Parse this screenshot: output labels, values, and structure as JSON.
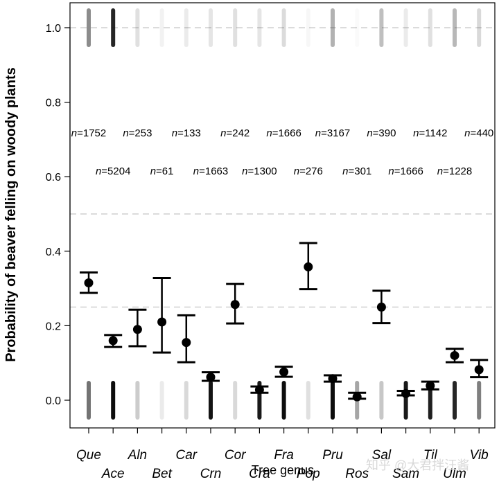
{
  "chart_data": {
    "type": "scatter",
    "xlabel": "Tree genus",
    "ylabel": "Probability of beaver felling on woody plants",
    "ylim": [
      -0.05,
      1.05
    ],
    "yticks": [
      0.0,
      0.2,
      0.4,
      0.6,
      0.8,
      1.0
    ],
    "ytick_labels": [
      "0.0",
      "0.2",
      "0.4",
      "0.6",
      "0.8",
      "1.0"
    ],
    "reference_lines": [
      0.25,
      0.5,
      1.0
    ],
    "grid": false,
    "categories": [
      {
        "label": "Que",
        "n": "1752",
        "mean": 0.315,
        "lo": 0.288,
        "hi": 0.343,
        "jitter0": 0.55,
        "jitter1": 0.45
      },
      {
        "label": "Ace",
        "n": "5204",
        "mean": 0.16,
        "lo": 0.143,
        "hi": 0.175,
        "jitter0": 0.95,
        "jitter1": 0.85
      },
      {
        "label": "Aln",
        "n": "253",
        "mean": 0.19,
        "lo": 0.145,
        "hi": 0.243,
        "jitter0": 0.2,
        "jitter1": 0.12
      },
      {
        "label": "Bet",
        "n": "61",
        "mean": 0.21,
        "lo": 0.128,
        "hi": 0.328,
        "jitter0": 0.08,
        "jitter1": 0.05
      },
      {
        "label": "Car",
        "n": "133",
        "mean": 0.155,
        "lo": 0.102,
        "hi": 0.228,
        "jitter0": 0.15,
        "jitter1": 0.08
      },
      {
        "label": "Crn",
        "n": "1663",
        "mean": 0.062,
        "lo": 0.052,
        "hi": 0.075,
        "jitter0": 0.92,
        "jitter1": 0.1
      },
      {
        "label": "Cor",
        "n": "242",
        "mean": 0.257,
        "lo": 0.206,
        "hi": 0.312,
        "jitter0": 0.15,
        "jitter1": 0.12
      },
      {
        "label": "Cra",
        "n": "1300",
        "mean": 0.028,
        "lo": 0.02,
        "hi": 0.037,
        "jitter0": 0.9,
        "jitter1": 0.1
      },
      {
        "label": "Fra",
        "n": "1666",
        "mean": 0.076,
        "lo": 0.063,
        "hi": 0.09,
        "jitter0": 0.95,
        "jitter1": 0.14
      },
      {
        "label": "Pop",
        "n": "276",
        "mean": 0.358,
        "lo": 0.298,
        "hi": 0.422,
        "jitter0": 0.12,
        "jitter1": 0.03
      },
      {
        "label": "Pru",
        "n": "3167",
        "mean": 0.058,
        "lo": 0.05,
        "hi": 0.067,
        "jitter0": 0.95,
        "jitter1": 0.3
      },
      {
        "label": "Ros",
        "n": "301",
        "mean": 0.009,
        "lo": 0.004,
        "hi": 0.02,
        "jitter0": 0.35,
        "jitter1": 0.02
      },
      {
        "label": "Sal",
        "n": "390",
        "mean": 0.25,
        "lo": 0.207,
        "hi": 0.294,
        "jitter0": 0.22,
        "jitter1": 0.25
      },
      {
        "label": "Sam",
        "n": "1666",
        "mean": 0.018,
        "lo": 0.013,
        "hi": 0.025,
        "jitter0": 0.9,
        "jitter1": 0.08
      },
      {
        "label": "Til",
        "n": "1142",
        "mean": 0.039,
        "lo": 0.029,
        "hi": 0.05,
        "jitter0": 0.88,
        "jitter1": 0.12
      },
      {
        "label": "Ulm",
        "n": "1228",
        "mean": 0.12,
        "lo": 0.102,
        "hi": 0.138,
        "jitter0": 0.85,
        "jitter1": 0.28
      },
      {
        "label": "Vib",
        "n": "440",
        "mean": 0.082,
        "lo": 0.062,
        "hi": 0.108,
        "jitter0": 0.5,
        "jitter1": 0.15
      }
    ]
  },
  "watermark": "知乎 @大君拌汪酱"
}
